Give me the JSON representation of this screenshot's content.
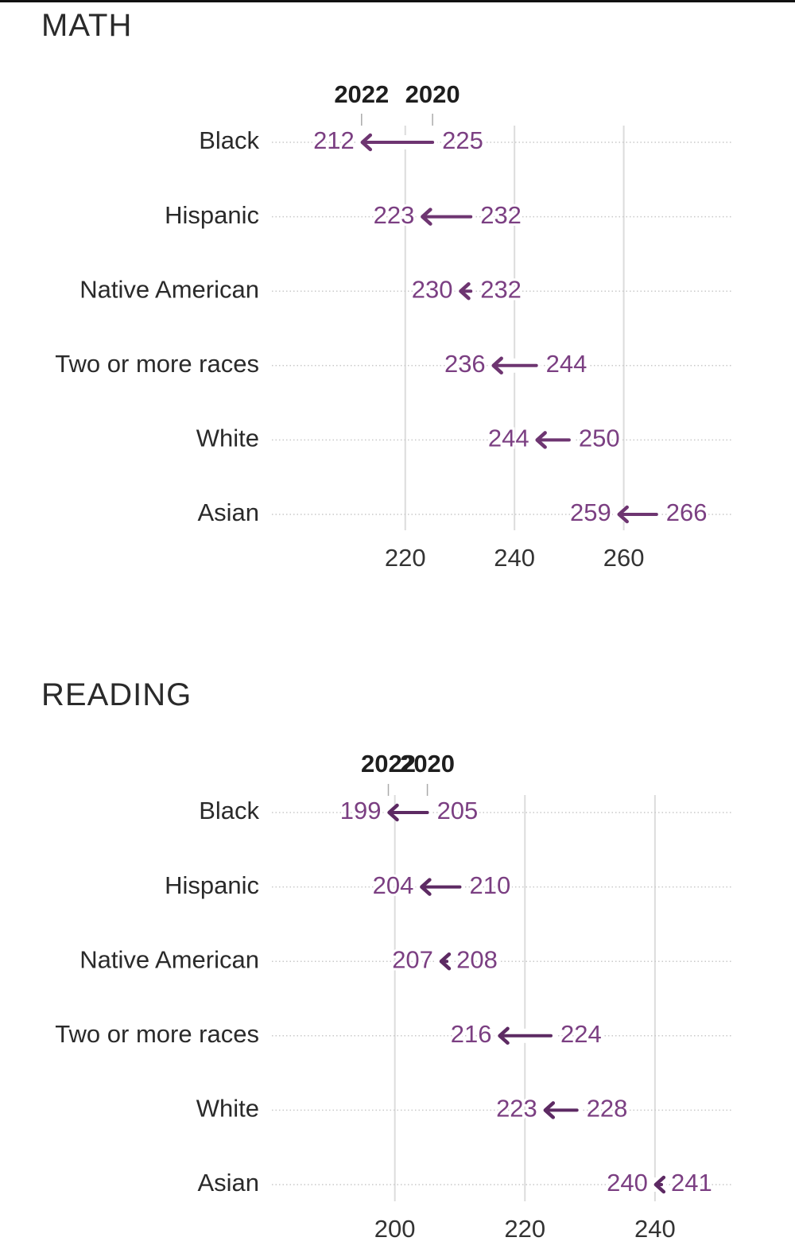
{
  "chart_data": [
    {
      "type": "dumbbell",
      "title": "MATH",
      "legend": {
        "from_year": "2020",
        "to_year": "2022"
      },
      "x_ticks": [
        220,
        240,
        260
      ],
      "x_range": [
        195,
        280
      ],
      "color": "#7b3f82",
      "arrow_color": "#6e3571",
      "rows": [
        {
          "label": "Black",
          "from": 225,
          "to": 212
        },
        {
          "label": "Hispanic",
          "from": 232,
          "to": 223
        },
        {
          "label": "Native American",
          "from": 232,
          "to": 230
        },
        {
          "label": "Two or more races",
          "from": 244,
          "to": 236
        },
        {
          "label": "White",
          "from": 250,
          "to": 244
        },
        {
          "label": "Asian",
          "from": 266,
          "to": 259
        }
      ]
    },
    {
      "type": "dumbbell",
      "title": "READING",
      "legend": {
        "from_year": "2020",
        "to_year": "2022"
      },
      "x_ticks": [
        200,
        220,
        240
      ],
      "x_range": [
        180.6,
        252
      ],
      "color": "#7b3f82",
      "arrow_color": "#5d2a63",
      "rows": [
        {
          "label": "Black",
          "from": 205,
          "to": 199
        },
        {
          "label": "Hispanic",
          "from": 210,
          "to": 204
        },
        {
          "label": "Native American",
          "from": 208,
          "to": 207
        },
        {
          "label": "Two or more races",
          "from": 224,
          "to": 216
        },
        {
          "label": "White",
          "from": 228,
          "to": 223
        },
        {
          "label": "Asian",
          "from": 241,
          "to": 240
        }
      ]
    }
  ]
}
